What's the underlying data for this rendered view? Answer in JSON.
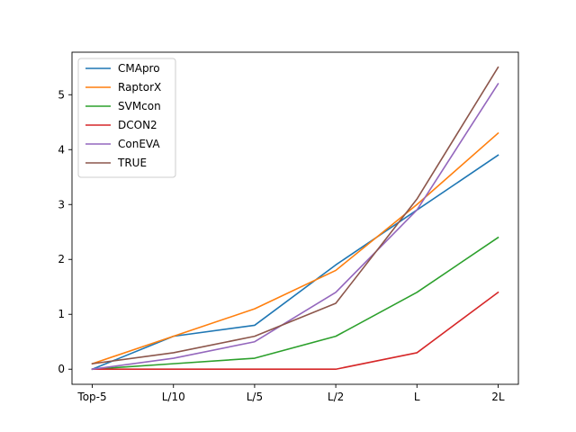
{
  "chart_data": {
    "type": "line",
    "title": "",
    "xlabel": "",
    "ylabel": "",
    "categories": [
      "Top-5",
      "L/10",
      "L/5",
      "L/2",
      "L",
      "2L"
    ],
    "yticks": [
      0,
      1,
      2,
      3,
      4,
      5
    ],
    "ylim": [
      -0.275,
      5.775
    ],
    "grid": false,
    "legend_position": "upper-left",
    "series": [
      {
        "name": "CMApro",
        "color": "#1f77b4",
        "values": [
          0.0,
          0.6,
          0.8,
          1.9,
          2.9,
          3.9
        ]
      },
      {
        "name": "RaptorX",
        "color": "#ff7f0e",
        "values": [
          0.1,
          0.6,
          1.1,
          1.8,
          3.0,
          4.3
        ]
      },
      {
        "name": "SVMcon",
        "color": "#2ca02c",
        "values": [
          0.0,
          0.1,
          0.2,
          0.6,
          1.4,
          2.4
        ]
      },
      {
        "name": "DCON2",
        "color": "#d62728",
        "values": [
          0.0,
          0.0,
          0.0,
          0.0,
          0.3,
          1.4
        ]
      },
      {
        "name": "ConEVA",
        "color": "#9467bd",
        "values": [
          0.0,
          0.2,
          0.5,
          1.4,
          2.9,
          5.2
        ]
      },
      {
        "name": "TRUE",
        "color": "#8c564b",
        "values": [
          0.1,
          0.3,
          0.6,
          1.2,
          3.1,
          5.5
        ]
      }
    ]
  }
}
